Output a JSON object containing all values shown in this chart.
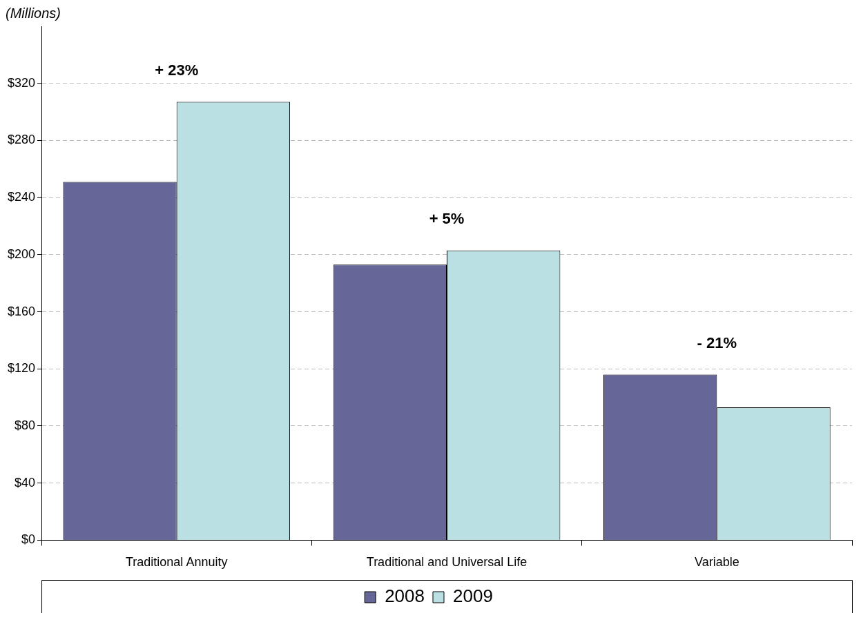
{
  "chart_data": {
    "type": "bar",
    "ylabel": "(Millions)",
    "categories": [
      "Traditional Annuity",
      "Traditional and Universal Life",
      "Variable"
    ],
    "series": [
      {
        "name": "2008",
        "color": "#666699",
        "values": [
          251,
          193,
          116
        ]
      },
      {
        "name": "2009",
        "color": "#bbe0e3",
        "values": [
          307,
          203,
          93
        ]
      }
    ],
    "ylim": [
      0,
      360
    ],
    "yticks": [
      {
        "value": 0,
        "label": "$0"
      },
      {
        "value": 40,
        "label": "$40"
      },
      {
        "value": 80,
        "label": "$80"
      },
      {
        "value": 120,
        "label": "$120"
      },
      {
        "value": 160,
        "label": "$160"
      },
      {
        "value": 200,
        "label": "$200"
      },
      {
        "value": 240,
        "label": "$240"
      },
      {
        "value": 280,
        "label": "$280"
      },
      {
        "value": 320,
        "label": "$320"
      }
    ],
    "grid": "y",
    "legend": "bottom",
    "annotations": [
      "+ 23%",
      "+ 5%",
      "- 21%"
    ]
  }
}
